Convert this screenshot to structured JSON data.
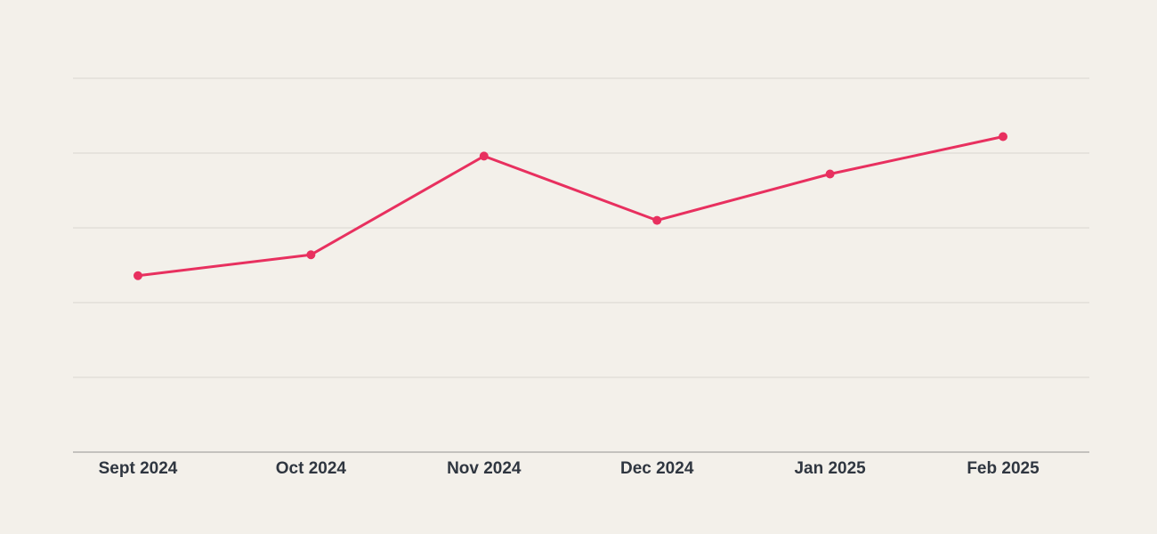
{
  "chart_data": {
    "type": "line",
    "categories": [
      "Sept 2024",
      "Oct 2024",
      "Nov 2024",
      "Dec 2024",
      "Jan 2025",
      "Feb 2025"
    ],
    "series": [
      {
        "values": [
          2.36,
          2.64,
          3.96,
          3.1,
          3.72,
          4.22
        ]
      }
    ],
    "ylim": [
      0,
      5
    ],
    "grid": true,
    "colors": {
      "line": "#e8305f",
      "background": "#f3f0ea",
      "grid": "#d9d6d0",
      "axis": "#a9a7a3",
      "label": "#2f3640"
    }
  }
}
